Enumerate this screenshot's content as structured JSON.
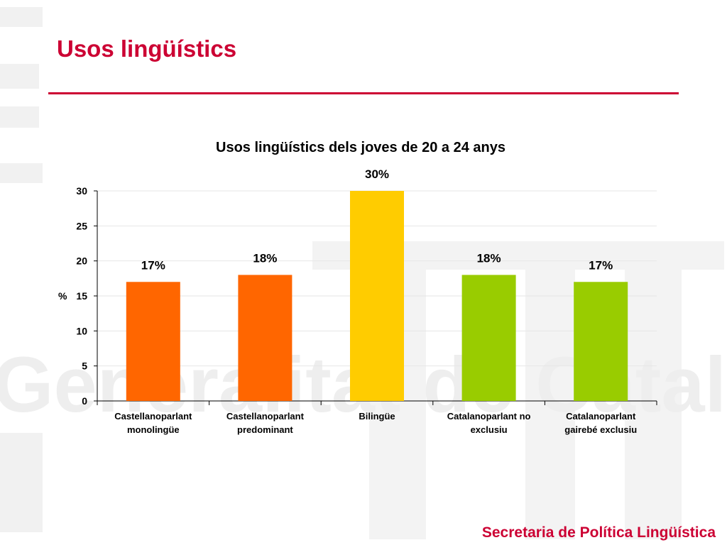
{
  "slide": {
    "title": "Usos lingüístics",
    "footer": "Secretaria de Política Lingüística"
  },
  "colors": {
    "accent": "#cc0033",
    "castellano": "#ff6600",
    "bilingue": "#ffcc00",
    "catala": "#99cc00"
  },
  "chart_data": {
    "type": "bar",
    "title": "Usos lingüístics dels joves de 20 a 24 anys",
    "ylabel": "%",
    "xlabel": "",
    "ylim": [
      0,
      30
    ],
    "yticks": [
      0,
      5,
      10,
      15,
      20,
      25,
      30
    ],
    "grid": true,
    "categories": [
      [
        "Castellanoparlant",
        "monolingüe"
      ],
      [
        "Castellanoparlant",
        "predominant"
      ],
      [
        "Bilingüe"
      ],
      [
        "Catalanoparlant no",
        "exclusiu"
      ],
      [
        "Catalanoparlant",
        "gairebé exclusiu"
      ]
    ],
    "values": [
      17,
      18,
      30,
      18,
      17
    ],
    "data_labels": [
      "17%",
      "18%",
      "30%",
      "18%",
      "17%"
    ],
    "bar_colors": [
      "#ff6600",
      "#ff6600",
      "#ffcc00",
      "#99cc00",
      "#99cc00"
    ]
  }
}
